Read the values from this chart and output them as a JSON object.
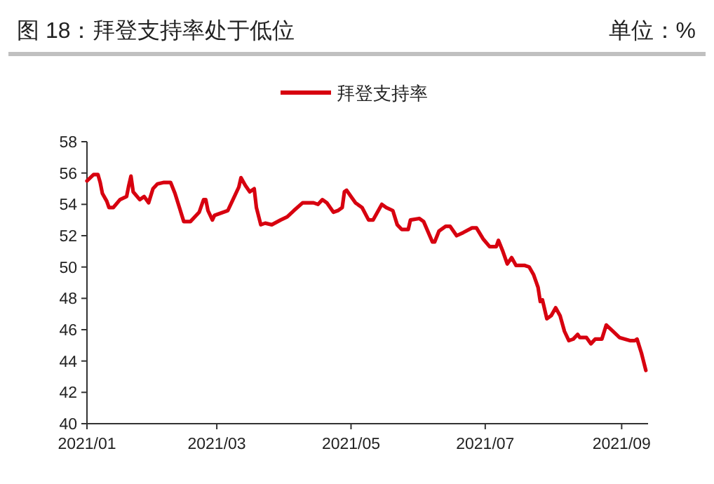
{
  "chart_data": {
    "type": "line",
    "title": "图 18：拜登支持率处于低位",
    "annotations": [
      "单位：%"
    ],
    "legend": "top",
    "grid": false,
    "marker": "none",
    "line_style": "solid",
    "xlim": [
      "2021-01-01",
      "2021-09-13"
    ],
    "xticks": [
      {
        "value": "2021-01-01",
        "label": "2021/01"
      },
      {
        "value": "2021-03-01",
        "label": "2021/03"
      },
      {
        "value": "2021-05-01",
        "label": "2021/05"
      },
      {
        "value": "2021-07-01",
        "label": "2021/07"
      },
      {
        "value": "2021-09-01",
        "label": "2021/09"
      }
    ],
    "ylim": [
      40,
      58
    ],
    "yticks": [
      40,
      42,
      44,
      46,
      48,
      50,
      52,
      54,
      56,
      58
    ],
    "x": [
      "2021-01-01",
      "2021-01-04",
      "2021-01-06",
      "2021-01-07",
      "2021-01-08",
      "2021-01-10",
      "2021-01-11",
      "2021-01-13",
      "2021-01-16",
      "2021-01-19",
      "2021-01-20",
      "2021-01-21",
      "2021-01-22",
      "2021-01-25",
      "2021-01-27",
      "2021-01-29",
      "2021-01-31",
      "2021-02-02",
      "2021-02-05",
      "2021-02-08",
      "2021-02-10",
      "2021-02-12",
      "2021-02-14",
      "2021-02-17",
      "2021-02-21",
      "2021-02-23",
      "2021-02-24",
      "2021-02-25",
      "2021-02-27",
      "2021-02-28",
      "2021-03-04",
      "2021-03-06",
      "2021-03-08",
      "2021-03-11",
      "2021-03-12",
      "2021-03-14",
      "2021-03-16",
      "2021-03-18",
      "2021-03-19",
      "2021-03-21",
      "2021-03-23",
      "2021-03-26",
      "2021-03-30",
      "2021-04-02",
      "2021-04-05",
      "2021-04-09",
      "2021-04-14",
      "2021-04-16",
      "2021-04-18",
      "2021-04-20",
      "2021-04-23",
      "2021-04-25",
      "2021-04-27",
      "2021-04-28",
      "2021-04-29",
      "2021-05-01",
      "2021-05-03",
      "2021-05-06",
      "2021-05-09",
      "2021-05-11",
      "2021-05-13",
      "2021-05-15",
      "2021-05-17",
      "2021-05-20",
      "2021-05-22",
      "2021-05-24",
      "2021-05-27",
      "2021-05-28",
      "2021-06-01",
      "2021-06-03",
      "2021-06-07",
      "2021-06-08",
      "2021-06-10",
      "2021-06-13",
      "2021-06-15",
      "2021-06-18",
      "2021-06-21",
      "2021-06-25",
      "2021-06-27",
      "2021-06-30",
      "2021-07-03",
      "2021-07-06",
      "2021-07-07",
      "2021-07-09",
      "2021-07-11",
      "2021-07-13",
      "2021-07-15",
      "2021-07-19",
      "2021-07-21",
      "2021-07-23",
      "2021-07-25",
      "2021-07-26",
      "2021-07-27",
      "2021-07-29",
      "2021-07-31",
      "2021-08-02",
      "2021-08-04",
      "2021-08-06",
      "2021-08-08",
      "2021-08-10",
      "2021-08-12",
      "2021-08-13",
      "2021-08-16",
      "2021-08-18",
      "2021-08-20",
      "2021-08-23",
      "2021-08-25",
      "2021-08-28",
      "2021-08-31",
      "2021-09-05",
      "2021-09-07",
      "2021-09-08",
      "2021-09-10",
      "2021-09-12"
    ],
    "series": [
      {
        "name": "拜登支持率",
        "color": "#d7000f",
        "values": [
          55.5,
          55.9,
          55.9,
          55.4,
          54.7,
          54.2,
          53.8,
          53.8,
          54.3,
          54.5,
          55.2,
          55.8,
          54.8,
          54.3,
          54.5,
          54.1,
          55.0,
          55.3,
          55.4,
          55.4,
          54.7,
          53.8,
          52.9,
          52.9,
          53.5,
          54.3,
          54.3,
          53.6,
          53.0,
          53.3,
          53.5,
          53.6,
          54.2,
          55.1,
          55.7,
          55.2,
          54.8,
          55.0,
          53.8,
          52.7,
          52.8,
          52.7,
          53.0,
          53.2,
          53.6,
          54.1,
          54.1,
          54.0,
          54.3,
          54.1,
          53.5,
          53.6,
          53.8,
          54.8,
          54.9,
          54.5,
          54.1,
          53.8,
          53.0,
          53.0,
          53.5,
          54.0,
          53.8,
          53.6,
          52.7,
          52.4,
          52.4,
          53.0,
          53.1,
          52.9,
          51.6,
          51.6,
          52.3,
          52.6,
          52.6,
          52.0,
          52.2,
          52.5,
          52.5,
          51.8,
          51.3,
          51.3,
          51.7,
          51.0,
          50.2,
          50.6,
          50.1,
          50.1,
          50.0,
          49.5,
          48.7,
          47.8,
          47.9,
          46.7,
          46.9,
          47.4,
          46.9,
          45.9,
          45.3,
          45.4,
          45.7,
          45.5,
          45.5,
          45.1,
          45.4,
          45.4,
          46.3,
          45.9,
          45.5,
          45.3,
          45.3,
          45.4,
          44.5,
          43.4
        ]
      }
    ]
  }
}
